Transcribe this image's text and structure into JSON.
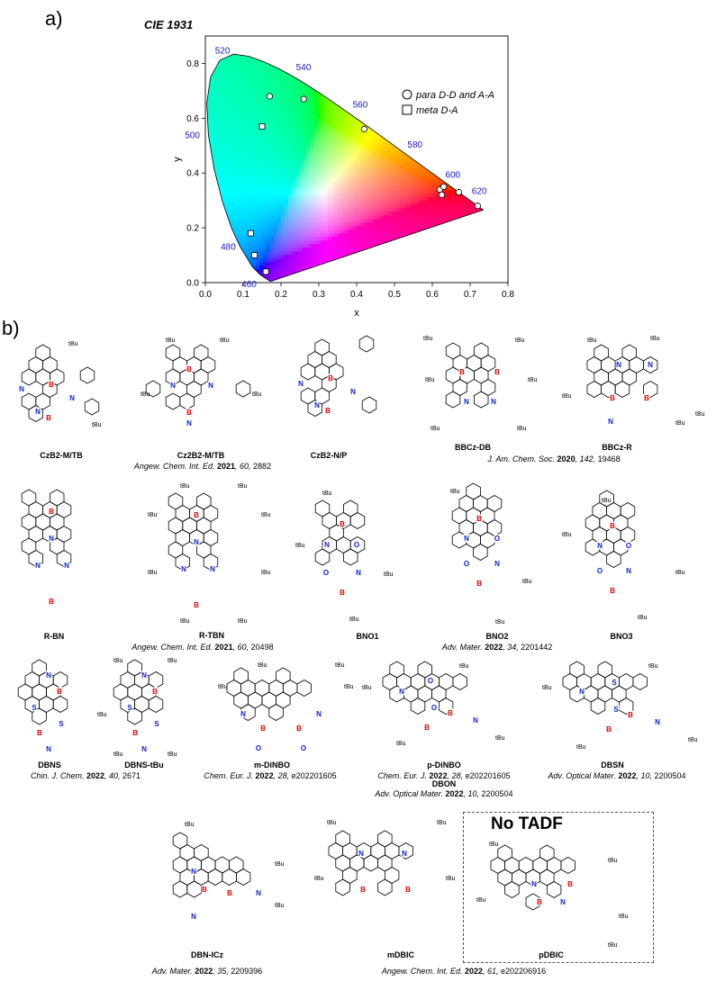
{
  "labels": {
    "panel_a": "a)",
    "panel_b": "b)",
    "cie_title": "CIE 1931",
    "no_tadf": "No TADF"
  },
  "chart_data": {
    "type": "scatter",
    "title": "CIE 1931",
    "xlabel": "x",
    "ylabel": "y",
    "xlim": [
      0.0,
      0.8
    ],
    "ylim": [
      0.0,
      0.9
    ],
    "x_ticks": [
      "0.0",
      "0.1",
      "0.2",
      "0.3",
      "0.4",
      "0.5",
      "0.6",
      "0.7",
      "0.8"
    ],
    "y_ticks": [
      "0.0",
      "0.2",
      "0.4",
      "0.6",
      "0.8"
    ],
    "grid": false,
    "legend_position": "upper-right",
    "wavelength_labels": [
      "460",
      "480",
      "500",
      "520",
      "540",
      "560",
      "580",
      "600",
      "620"
    ],
    "series": [
      {
        "name": "para D-D and A-A",
        "marker": "circle",
        "x": [
          0.17,
          0.26,
          0.42,
          0.62,
          0.63,
          0.625,
          0.67,
          0.72
        ],
        "y": [
          0.68,
          0.67,
          0.56,
          0.34,
          0.35,
          0.32,
          0.33,
          0.28
        ]
      },
      {
        "name": "meta D-A",
        "marker": "square",
        "x": [
          0.15,
          0.12,
          0.13,
          0.16
        ],
        "y": [
          0.57,
          0.18,
          0.1,
          0.04
        ]
      }
    ]
  },
  "molecules": [
    {
      "name": "CzB2-M/TB"
    },
    {
      "name": "Cz2B2-M/TB"
    },
    {
      "name": "CzB2-N/P"
    },
    {
      "name": "BBCz-DB"
    },
    {
      "name": "BBCz-R"
    },
    {
      "name": "R-BN"
    },
    {
      "name": "R-TBN"
    },
    {
      "name": "BNO1"
    },
    {
      "name": "BNO2"
    },
    {
      "name": "BNO3"
    },
    {
      "name": "DBNS"
    },
    {
      "name": "DBNS-tBu"
    },
    {
      "name": "m-DiNBO"
    },
    {
      "name": "p-DiNBO"
    },
    {
      "name": "DBON"
    },
    {
      "name": "DBSN"
    },
    {
      "name": "DBN-ICz"
    },
    {
      "name": "mDBIC"
    },
    {
      "name": "pDBIC"
    }
  ],
  "refs": [
    {
      "journal": "Angew. Chem. Int. Ed.",
      "year": "2021",
      "vol": ", 60, ",
      "page": "2882"
    },
    {
      "journal": "J. Am. Chem. Soc.",
      "year": "2020",
      "vol": ", 142, ",
      "page": "19468"
    },
    {
      "journal": "Angew. Chem. Int. Ed.",
      "year": "2021",
      "vol": ", 60, ",
      "page": "20498"
    },
    {
      "journal": "Adv. Mater.",
      "year": "2022",
      "vol": ", 34, ",
      "page": "2201442"
    },
    {
      "journal": "Chin. J. Chem.",
      "year": "2022",
      "vol": ", 40, ",
      "page": "2671"
    },
    {
      "journal": "Chem. Eur. J.",
      "year": "2022",
      "vol": ", 28, ",
      "page": "e202201605"
    },
    {
      "journal": "Chem. Eur. J.",
      "year": "2022",
      "vol": ", 28, ",
      "page": "e202201605"
    },
    {
      "journal": "Adv. Optical Mater.",
      "year": "2022",
      "vol": ", 10, ",
      "page": "2200504"
    },
    {
      "journal": "Adv. Optical Mater.",
      "year": "2022",
      "vol": ", 10, ",
      "page": "2200504"
    },
    {
      "journal": "Adv. Mater.",
      "year": "2022",
      "vol": ", 35, ",
      "page": "2209396"
    },
    {
      "journal": "Angew. Chem. Int. Ed.",
      "year": "2022",
      "vol": ", 61, ",
      "page": "e202206916"
    }
  ],
  "atoms": {
    "boron": "B",
    "nitrogen": "N",
    "oxygen": "O",
    "sulfur": "S",
    "tbu": "tBu"
  },
  "colors": {
    "boron": "#e00000",
    "nitrogen": "#1020d0",
    "oxygen": "#1020d0",
    "sulfur": "#1020d0",
    "wavelength_label": "#1a1acc"
  }
}
